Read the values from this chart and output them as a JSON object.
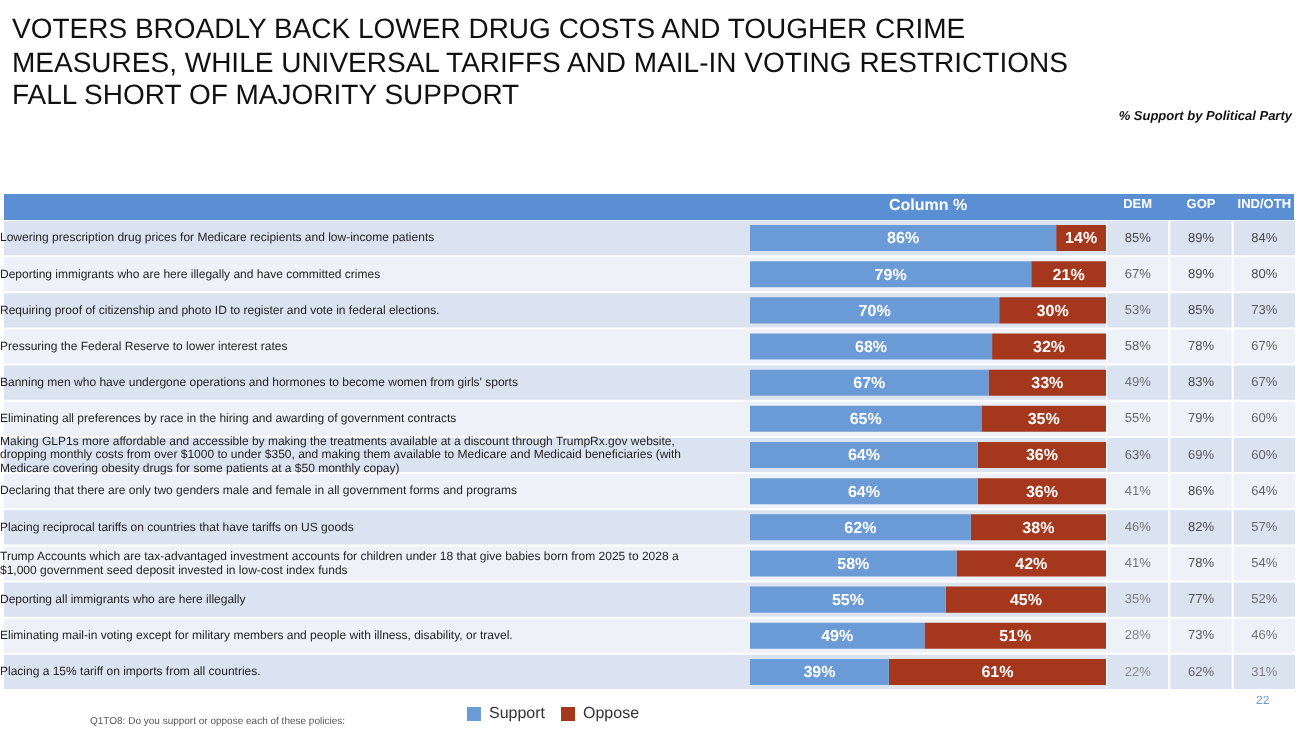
{
  "chart_data": [
    {
      "type": "bar",
      "orientation": "horizontal",
      "stacked": true,
      "title": "VOTERS BROADLY BACK LOWER DRUG COSTS AND TOUGHER CRIME MEASURES, WHILE UNIVERSAL TARIFFS AND MAIL-IN VOTING RESTRICTIONS FALL SHORT OF MAJORITY SUPPORT",
      "xlabel": "Column %",
      "categories": [
        "Lowering prescription drug prices for Medicare recipients and low-income patients",
        "Deporting immigrants who are here illegally and have committed crimes",
        "Requiring proof of citizenship and photo ID to register and vote in federal elections.",
        "Pressuring the Federal Reserve to lower interest rates",
        "Banning men who have undergone operations and hormones to become women from girls' sports",
        "Eliminating all preferences by race in the hiring and awarding of government contracts",
        "Making GLP1s more affordable and accessible by making the treatments available at a discount through TrumpRx.gov website, dropping monthly costs from over $1000 to under $350, and making them available to Medicare and Medicaid beneficiaries (with Medicare covering obesity drugs for some patients at a $50 monthly copay)",
        "Declaring that there are only two genders male and female in all government forms and programs",
        "Placing reciprocal tariffs on countries that have tariffs on US goods",
        "Trump Accounts which are tax-advantaged investment accounts for children under 18 that give babies born from 2025 to 2028 a $1,000 government seed deposit invested in low-cost index funds",
        "Deporting all immigrants who are here illegally",
        "Eliminating mail-in voting except for military members and people with illness, disability, or travel.",
        "Placing a 15% tariff on imports from all countries."
      ],
      "series": [
        {
          "name": "Support",
          "color": "#6b9bd6",
          "values": [
            86,
            79,
            70,
            68,
            67,
            65,
            64,
            64,
            62,
            58,
            55,
            49,
            39
          ],
          "value_labels": [
            "86%",
            "79%",
            "70%",
            "68%",
            "67%",
            "65%",
            "64%",
            "64%",
            "62%",
            "58%",
            "55%",
            "49%",
            "39%"
          ]
        },
        {
          "name": "Oppose",
          "color": "#a5371c",
          "values": [
            14,
            21,
            30,
            32,
            33,
            35,
            36,
            36,
            38,
            42,
            45,
            51,
            61
          ],
          "value_labels": [
            "14%",
            "21%",
            "30%",
            "32%",
            "33%",
            "35%",
            "36%",
            "36%",
            "38%",
            "42%",
            "45%",
            "51%",
            "61%"
          ]
        }
      ],
      "xlim": [
        0,
        100
      ],
      "tick_labels": "y",
      "legend": "bottom",
      "annotations": [
        "Q1TO8: Do you support or oppose each of these policies:",
        "22"
      ]
    },
    {
      "type": "heatmap",
      "title": "% Support by Political Party",
      "categories": [
        "DEM",
        "GOP",
        "IND/OTH"
      ],
      "y_categories": [
        null,
        null,
        null,
        null,
        null,
        null,
        null,
        null,
        null,
        null,
        null,
        null,
        null
      ],
      "cells": [
        [
          85,
          89,
          84
        ],
        [
          67,
          89,
          80
        ],
        [
          53,
          85,
          73
        ],
        [
          58,
          78,
          67
        ],
        [
          49,
          83,
          67
        ],
        [
          55,
          79,
          60
        ],
        [
          63,
          69,
          60
        ],
        [
          41,
          86,
          64
        ],
        [
          46,
          82,
          57
        ],
        [
          41,
          78,
          54
        ],
        [
          35,
          77,
          52
        ],
        [
          28,
          73,
          46
        ],
        [
          22,
          62,
          31
        ]
      ],
      "cell_labels": [
        [
          "85%",
          "89%",
          "84%"
        ],
        [
          "67%",
          "89%",
          "80%"
        ],
        [
          "53%",
          "85%",
          "73%"
        ],
        [
          "58%",
          "78%",
          "67%"
        ],
        [
          "49%",
          "83%",
          "67%"
        ],
        [
          "55%",
          "79%",
          "60%"
        ],
        [
          "63%",
          "69%",
          "60%"
        ],
        [
          "41%",
          "86%",
          "64%"
        ],
        [
          "46%",
          "82%",
          "57%"
        ],
        [
          "41%",
          "78%",
          "54%"
        ],
        [
          "35%",
          "77%",
          "52%"
        ],
        [
          "28%",
          "73%",
          "46%"
        ],
        [
          "22%",
          "62%",
          "31%"
        ]
      ],
      "data_labels": true,
      "tick_labels": "x"
    }
  ]
}
